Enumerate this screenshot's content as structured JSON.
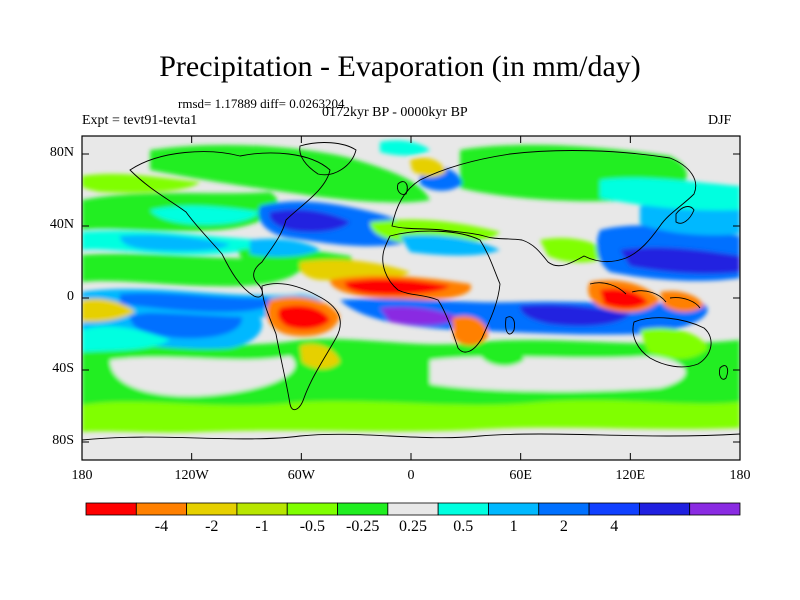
{
  "title": "Precipitation - Evaporation (in mm/day)",
  "stats": "rmsd= 1.17889 diff= 0.0263204",
  "experiment": "Expt = tevt91-tevta1",
  "period": "0172kyr BP - 0000kyr BP",
  "season": "DJF",
  "map": {
    "projection": "cylindrical-equidistant",
    "lon_range": [
      -180,
      180
    ],
    "lat_range": [
      -90,
      90
    ],
    "lat_ticks": [
      {
        "label": "80N",
        "lat": 80
      },
      {
        "label": "40N",
        "lat": 40
      },
      {
        "label": "0",
        "lat": 0
      },
      {
        "label": "40S",
        "lat": -40
      },
      {
        "label": "80S",
        "lat": -80
      }
    ],
    "lon_ticks": [
      {
        "label": "180",
        "lon": -180
      },
      {
        "label": "120W",
        "lon": -120
      },
      {
        "label": "60W",
        "lon": -60
      },
      {
        "label": "0",
        "lon": 0
      },
      {
        "label": "60E",
        "lon": 60
      },
      {
        "label": "120E",
        "lon": 120
      },
      {
        "label": "180",
        "lon": 180
      }
    ]
  },
  "colorbar": {
    "colors": [
      "#ff0000",
      "#ff8000",
      "#e6d000",
      "#b8e600",
      "#80ff00",
      "#20ee20",
      "#e8e8e8",
      "#00ffe0",
      "#00b8ff",
      "#0070ff",
      "#1040ff",
      "#2020e0",
      "#8a2be2"
    ],
    "labels": [
      "-4",
      "-2",
      "-1",
      "-0.5",
      "-0.25",
      "0.25",
      "0.5",
      "1",
      "2",
      "4"
    ]
  },
  "field_colors": {
    "red": "#ff0000",
    "orange": "#ff8000",
    "yellow": "#e6d000",
    "lime": "#b8e600",
    "green": "#20ee20",
    "light_green": "#80ff00",
    "gray": "#e8e8e8",
    "cyan": "#00ffe0",
    "sky": "#00b8ff",
    "blue": "#0070ff",
    "dark_blue": "#2020e0",
    "purple": "#8a2be2"
  }
}
